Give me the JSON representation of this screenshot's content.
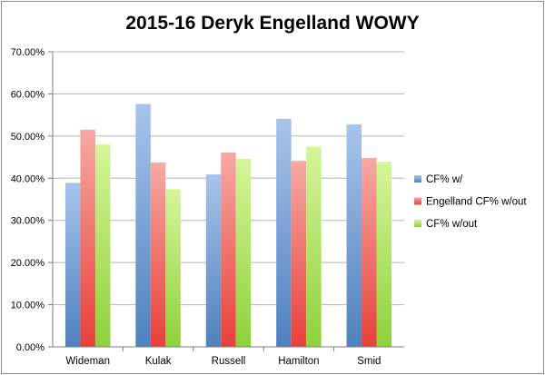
{
  "chart_data": {
    "type": "bar",
    "title": "2015-16 Deryk Engelland WOWY",
    "xlabel": "",
    "ylabel": "",
    "ylim": [
      0,
      70
    ],
    "y_ticks": [
      "0.00%",
      "10.00%",
      "20.00%",
      "30.00%",
      "40.00%",
      "50.00%",
      "60.00%",
      "70.00%"
    ],
    "categories": [
      "Wideman",
      "Kulak",
      "Russell",
      "Hamilton",
      "Smid"
    ],
    "series": [
      {
        "name": "CF% w/",
        "values": [
          38.9,
          57.6,
          40.9,
          54.1,
          52.8
        ],
        "color": "#4f81bd",
        "color_light": "#a8c4ec"
      },
      {
        "name": "Engelland CF% w/out",
        "values": [
          51.5,
          43.7,
          46.1,
          44.1,
          44.8
        ],
        "color": "#e8403a",
        "color_light": "#f7a9a4"
      },
      {
        "name": "CF% w/out",
        "values": [
          48.0,
          37.4,
          44.6,
          47.5,
          43.9
        ],
        "color": "#8fd13a",
        "color_light": "#d6f59b"
      }
    ],
    "grid": true,
    "legend_position": "right"
  }
}
